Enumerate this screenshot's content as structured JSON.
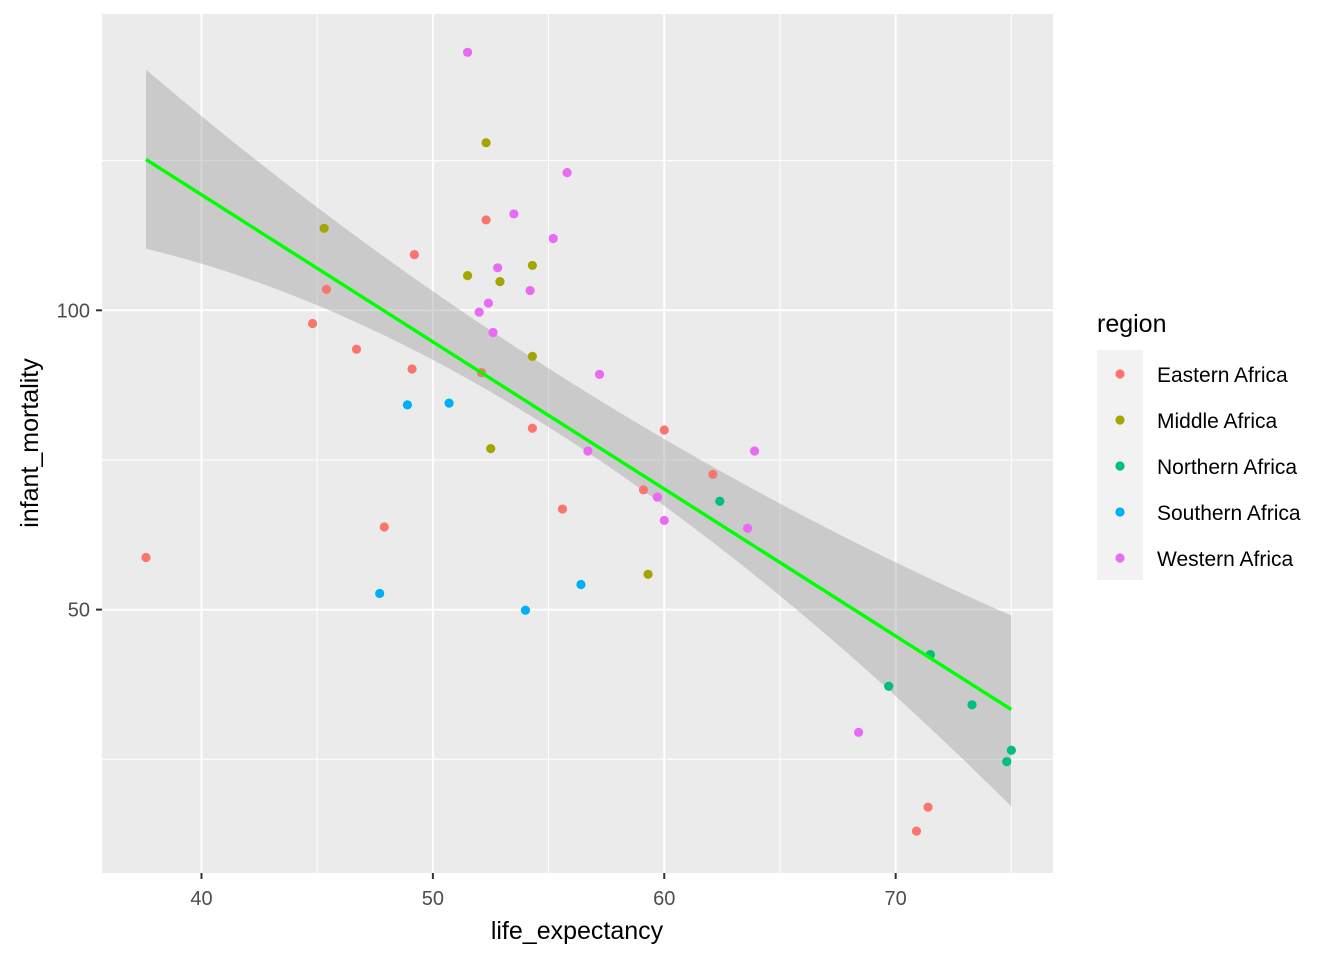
{
  "chart_data": {
    "type": "scatter",
    "title": "",
    "xlabel": "life_expectancy",
    "ylabel": "infant_mortality",
    "xlim": [
      35.7,
      76.8
    ],
    "ylim": [
      6.0,
      149.5
    ],
    "x_ticks": [
      40,
      50,
      60,
      70
    ],
    "y_ticks": [
      50,
      100
    ],
    "grid": true,
    "legend": {
      "title": "region",
      "placement": "right"
    },
    "series": [
      {
        "name": "Eastern Africa",
        "color": "#F8766D",
        "points": [
          [
            37.6,
            58.7
          ],
          [
            44.8,
            97.8
          ],
          [
            45.4,
            103.5
          ],
          [
            46.7,
            93.5
          ],
          [
            47.9,
            63.8
          ],
          [
            49.1,
            90.2
          ],
          [
            49.2,
            109.3
          ],
          [
            52.1,
            89.6
          ],
          [
            52.3,
            115.1
          ],
          [
            54.3,
            80.3
          ],
          [
            55.6,
            66.8
          ],
          [
            59.1,
            70.0
          ],
          [
            60.0,
            80.0
          ],
          [
            62.1,
            72.6
          ],
          [
            70.9,
            13.0
          ],
          [
            71.4,
            17.0
          ]
        ]
      },
      {
        "name": "Middle Africa",
        "color": "#A3A500",
        "points": [
          [
            45.3,
            113.7
          ],
          [
            51.5,
            105.8
          ],
          [
            52.3,
            128.0
          ],
          [
            52.5,
            76.9
          ],
          [
            52.9,
            104.8
          ],
          [
            54.3,
            107.5
          ],
          [
            54.3,
            92.3
          ],
          [
            59.3,
            55.9
          ]
        ]
      },
      {
        "name": "Northern Africa",
        "color": "#00BF7D",
        "points": [
          [
            62.4,
            68.1
          ],
          [
            69.7,
            37.2
          ],
          [
            71.5,
            42.5
          ],
          [
            73.3,
            34.1
          ],
          [
            74.8,
            24.6
          ],
          [
            75.0,
            26.5
          ]
        ]
      },
      {
        "name": "Southern Africa",
        "color": "#00B0F6",
        "points": [
          [
            47.7,
            52.7
          ],
          [
            48.9,
            84.2
          ],
          [
            50.7,
            84.5
          ],
          [
            54.0,
            49.9
          ],
          [
            56.4,
            54.2
          ]
        ]
      },
      {
        "name": "Western Africa",
        "color": "#E76BF3",
        "points": [
          [
            51.5,
            143.1
          ],
          [
            52.0,
            99.7
          ],
          [
            52.4,
            101.2
          ],
          [
            52.6,
            96.3
          ],
          [
            52.8,
            107.1
          ],
          [
            53.5,
            116.1
          ],
          [
            54.2,
            103.3
          ],
          [
            55.2,
            112.0
          ],
          [
            55.8,
            123.0
          ],
          [
            56.7,
            76.5
          ],
          [
            57.2,
            89.3
          ],
          [
            59.7,
            68.8
          ],
          [
            60.0,
            64.9
          ],
          [
            63.6,
            63.6
          ],
          [
            63.9,
            76.5
          ],
          [
            68.4,
            29.5
          ]
        ]
      }
    ],
    "fit": {
      "method": "linear",
      "color": "#00FF00",
      "x": [
        37.6,
        75.0
      ],
      "y": [
        125.2,
        33.3
      ],
      "ci_lower": [
        110.3,
        17.1
      ],
      "ci_upper": [
        140.2,
        49.0
      ],
      "ci_mid_x": 55.0,
      "ci_mid_lower": [
        78.9,
        88.7
      ]
    }
  }
}
